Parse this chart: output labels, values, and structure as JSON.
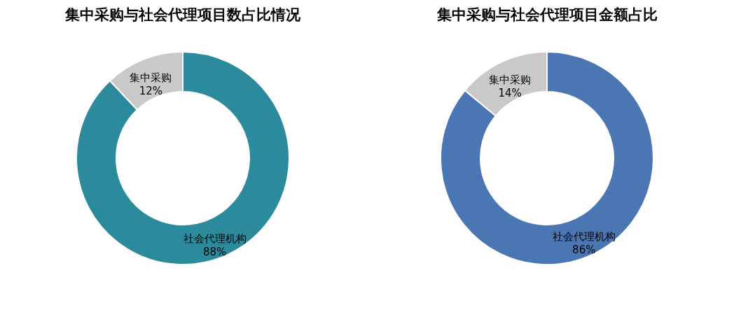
{
  "chart_data": [
    {
      "type": "donut",
      "title": "集中采购与社会代理项目数占比情况",
      "categories": [
        "社会代理机构",
        "集中采购"
      ],
      "values": [
        88,
        12
      ],
      "colors": [
        "#2b8a9c",
        "#c9c9c9"
      ],
      "value_labels": [
        "88%",
        "12%"
      ]
    },
    {
      "type": "donut",
      "title": "集中采购与社会代理项目金额占比",
      "categories": [
        "社会代理机构",
        "集中采购"
      ],
      "values": [
        86,
        14
      ],
      "colors": [
        "#4a77b4",
        "#c9c9c9"
      ],
      "value_labels": [
        "86%",
        "14%"
      ]
    }
  ]
}
